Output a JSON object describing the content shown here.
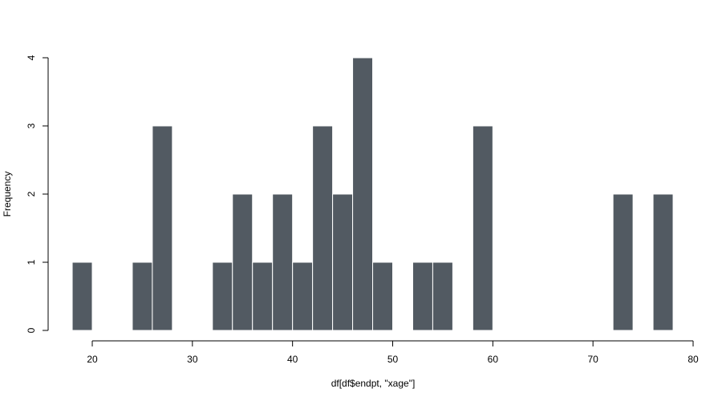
{
  "chart_data": {
    "type": "bar",
    "title": "",
    "xlabel": "df[df$endpt, \"xage\"]",
    "ylabel": "Frequency",
    "xlim": [
      18,
      80
    ],
    "ylim": [
      0,
      4
    ],
    "bin_width": 2,
    "x_ticks": [
      20,
      30,
      40,
      50,
      60,
      70,
      80
    ],
    "y_ticks": [
      0,
      1,
      2,
      3,
      4
    ],
    "bins": [
      {
        "start": 18,
        "end": 20,
        "count": 1
      },
      {
        "start": 24,
        "end": 26,
        "count": 1
      },
      {
        "start": 26,
        "end": 28,
        "count": 3
      },
      {
        "start": 32,
        "end": 34,
        "count": 1
      },
      {
        "start": 34,
        "end": 36,
        "count": 2
      },
      {
        "start": 36,
        "end": 38,
        "count": 1
      },
      {
        "start": 38,
        "end": 40,
        "count": 2
      },
      {
        "start": 40,
        "end": 42,
        "count": 1
      },
      {
        "start": 42,
        "end": 44,
        "count": 3
      },
      {
        "start": 44,
        "end": 46,
        "count": 2
      },
      {
        "start": 46,
        "end": 48,
        "count": 4
      },
      {
        "start": 48,
        "end": 50,
        "count": 1
      },
      {
        "start": 52,
        "end": 54,
        "count": 1
      },
      {
        "start": 54,
        "end": 56,
        "count": 1
      },
      {
        "start": 58,
        "end": 60,
        "count": 3
      },
      {
        "start": 72,
        "end": 74,
        "count": 2
      },
      {
        "start": 76,
        "end": 78,
        "count": 2
      }
    ],
    "bar_color": "#525a62",
    "bar_border_color": "#ffffff",
    "grid": false,
    "legend": "none"
  }
}
